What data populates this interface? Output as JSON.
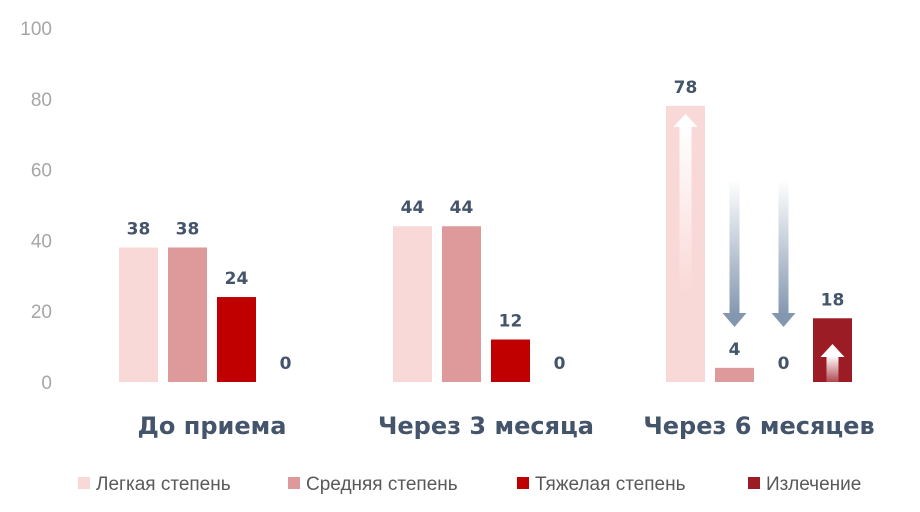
{
  "chart_data": {
    "type": "bar",
    "categories": [
      "До приема",
      "Через 3 месяца",
      "Через 6 месяцев"
    ],
    "series": [
      {
        "name": "Легкая степень",
        "values": [
          38,
          44,
          78
        ],
        "color": "#f9d9d7"
      },
      {
        "name": "Средняя степень",
        "values": [
          38,
          44,
          4
        ],
        "color": "#de9a9b"
      },
      {
        "name": "Тяжелая степень",
        "values": [
          24,
          12,
          0
        ],
        "color": "#c00000"
      },
      {
        "name": "Излечение",
        "values": [
          0,
          0,
          18
        ],
        "color": "#9b1c24"
      }
    ],
    "ylim": [
      0,
      100
    ],
    "yticks": [
      "0",
      "20",
      "40",
      "60",
      "80",
      "100"
    ],
    "grid": false,
    "legend_position": "bottom",
    "annotations": [
      {
        "type": "up-arrow",
        "category": "Через 6 месяцев",
        "series": "Легкая степень"
      },
      {
        "type": "down-arrow",
        "category": "Через 6 месяцев",
        "series": "Средняя степень"
      },
      {
        "type": "down-arrow",
        "category": "Через 6 месяцев",
        "series": "Тяжелая степень"
      },
      {
        "type": "up-arrow",
        "category": "Через 6 месяцев",
        "series": "Излечение"
      }
    ]
  }
}
